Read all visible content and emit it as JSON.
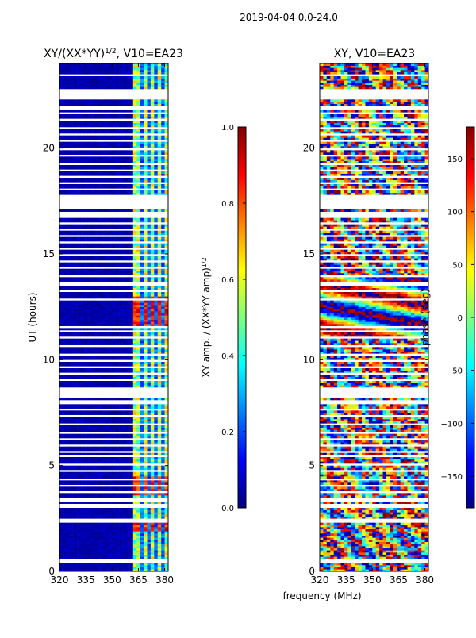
{
  "suptitle": "2019-04-04 0.0-24.0",
  "colors": {
    "jet": [
      "#00007f",
      "#0000ff",
      "#007fff",
      "#00ffff",
      "#7fff7f",
      "#ffff00",
      "#ff7f00",
      "#ff0000",
      "#7f0000"
    ],
    "nodata": "#ffffff"
  },
  "chart_data": [
    {
      "type": "heatmap",
      "title_main": "XY/(XX*YY)",
      "title_sup": "1/2",
      "title_rest": ", V10=EA23",
      "xlabel": "",
      "ylabel": "UT (hours)",
      "xlim": [
        320,
        382
      ],
      "ylim": [
        0,
        24
      ],
      "xticks": [
        320,
        335,
        350,
        365,
        380
      ],
      "yticks": [
        0,
        5,
        10,
        15,
        20
      ],
      "colorbar": {
        "label_main": "XY amp. / (XX*YY amp)",
        "label_sup": "1/2",
        "range": [
          0,
          1
        ],
        "ticks": [
          "0.0",
          "0.2",
          "0.4",
          "0.6",
          "0.8",
          "1.0"
        ]
      },
      "gaps_hours": [
        [
          0.42,
          0.58
        ],
        [
          2.3,
          2.55
        ],
        [
          3.05,
          3.2
        ],
        [
          3.3,
          3.55
        ],
        [
          3.7,
          3.8
        ],
        [
          4.05,
          4.12
        ],
        [
          4.35,
          4.42
        ],
        [
          4.7,
          4.78
        ],
        [
          5.05,
          5.12
        ],
        [
          5.4,
          5.48
        ],
        [
          5.6,
          5.75
        ],
        [
          5.95,
          6.05
        ],
        [
          6.25,
          6.32
        ],
        [
          6.55,
          6.62
        ],
        [
          6.95,
          7.02
        ],
        [
          7.3,
          7.4
        ],
        [
          7.65,
          7.75
        ],
        [
          7.95,
          8.1
        ],
        [
          8.25,
          8.75
        ],
        [
          9.0,
          9.08
        ],
        [
          9.3,
          9.38
        ],
        [
          9.6,
          9.7
        ],
        [
          9.9,
          9.98
        ],
        [
          10.25,
          10.32
        ],
        [
          10.65,
          10.72
        ],
        [
          11.0,
          11.08
        ],
        [
          11.3,
          11.38
        ],
        [
          11.55,
          11.62
        ],
        [
          12.85,
          12.95
        ],
        [
          13.2,
          13.3
        ],
        [
          13.55,
          13.75
        ],
        [
          13.95,
          14.02
        ],
        [
          14.3,
          14.4
        ],
        [
          14.65,
          14.72
        ],
        [
          14.95,
          15.02
        ],
        [
          15.25,
          15.32
        ],
        [
          15.55,
          15.62
        ],
        [
          15.85,
          15.92
        ],
        [
          16.15,
          16.22
        ],
        [
          16.4,
          16.5
        ],
        [
          16.7,
          17.0
        ],
        [
          17.15,
          17.8
        ],
        [
          18.05,
          18.12
        ],
        [
          18.35,
          18.42
        ],
        [
          18.6,
          18.7
        ],
        [
          18.9,
          18.98
        ],
        [
          19.25,
          19.32
        ],
        [
          19.6,
          19.7
        ],
        [
          19.95,
          20.02
        ],
        [
          20.3,
          20.38
        ],
        [
          20.6,
          20.7
        ],
        [
          20.95,
          21.02
        ],
        [
          21.3,
          21.38
        ],
        [
          21.6,
          21.68
        ],
        [
          21.85,
          22.05
        ],
        [
          22.3,
          22.8
        ],
        [
          23.4,
          23.5
        ]
      ]
    },
    {
      "type": "heatmap",
      "title_main": "XY, V10=EA23",
      "title_sup": "",
      "title_rest": "",
      "xlabel": "frequency (MHz)",
      "ylabel": "",
      "xlim": [
        320,
        382
      ],
      "ylim": [
        0,
        24
      ],
      "xticks": [
        320,
        335,
        350,
        365,
        380
      ],
      "yticks": [
        0,
        5,
        10,
        15,
        20
      ],
      "colorbar": {
        "label_main": "phase (deg)",
        "label_sup": "",
        "range": [
          -180,
          180
        ],
        "ticks": [
          "−150",
          "−100",
          "−50",
          "0",
          "50",
          "100",
          "150"
        ]
      }
    }
  ]
}
